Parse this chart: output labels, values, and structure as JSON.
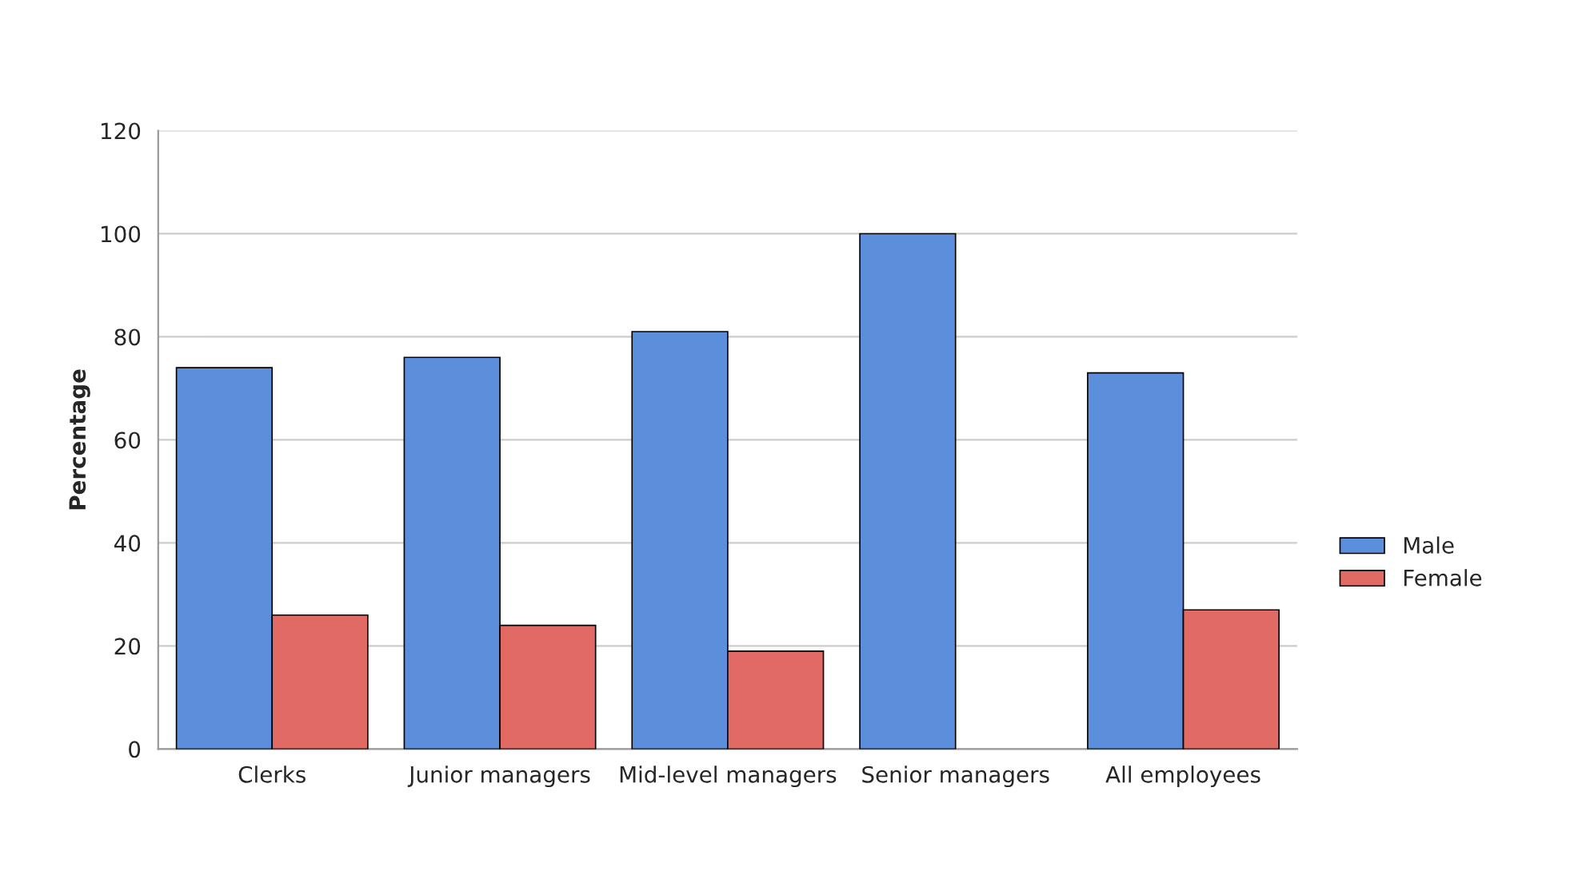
{
  "chart_data": {
    "type": "bar",
    "ylabel": "Percentage",
    "categories": [
      "Clerks",
      "Junior managers",
      "Mid-level managers",
      "Senior managers",
      "All employees"
    ],
    "series": [
      {
        "name": "Male",
        "color": "#5b8fdc",
        "values": [
          74,
          76,
          81,
          100,
          73
        ]
      },
      {
        "name": "Female",
        "color": "#e26a64",
        "values": [
          26,
          24,
          19,
          null,
          27
        ]
      }
    ],
    "ylim": [
      0,
      120
    ],
    "yticks": [
      0,
      20,
      40,
      60,
      80,
      100,
      120
    ],
    "grid": "y",
    "legend": "right"
  }
}
